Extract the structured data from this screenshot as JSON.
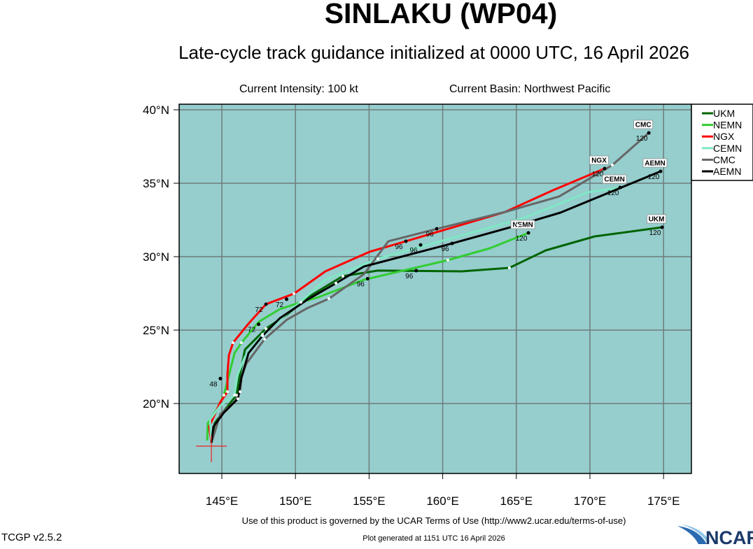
{
  "header": {
    "title": "SINLAKU (WP04)",
    "subtitle": "Late-cycle track guidance initialized at 0000 UTC, 16 April 2026",
    "intensity": "Current Intensity: 100 kt",
    "basin": "Current Basin: Northwest Pacific"
  },
  "footer": {
    "terms": "Use of this product is governed by the UCAR Terms of Use (http://www2.ucar.edu/terms-of-use)",
    "version": "TCGP v2.5.2",
    "generated": "Plot generated at 1151 UTC   16 April 2026",
    "logo_text": "NCAR"
  },
  "chart_data": {
    "type": "map-tracks",
    "ocean_color": "#96cdcd",
    "grid": true,
    "lon_range": [
      142.1,
      176.8
    ],
    "lat_range": [
      15.2,
      40.4
    ],
    "lon_ticks": [
      "145°E",
      "150°E",
      "155°E",
      "160°E",
      "165°E",
      "170°E",
      "175°E"
    ],
    "lon_tick_values": [
      145,
      150,
      155,
      160,
      165,
      170,
      175
    ],
    "lat_ticks": [
      "40°N",
      "35°N",
      "30°N",
      "25°N",
      "20°N"
    ],
    "lat_tick_values": [
      40,
      35,
      30,
      25,
      20
    ],
    "legend_position": "right-top",
    "current_position": [
      144.29,
      17.1
    ],
    "tracks": [
      {
        "name": "UKM",
        "color": "#006400",
        "points": [
          [
            144.29,
            17.33
          ],
          [
            144.52,
            18.67
          ],
          [
            145.24,
            19.62
          ],
          [
            146.0,
            20.57
          ],
          [
            146.19,
            21.76
          ],
          [
            146.57,
            23.67
          ],
          [
            147.99,
            25.1
          ],
          [
            149.42,
            26.05
          ],
          [
            150.85,
            27.24
          ],
          [
            153.22,
            28.67
          ],
          [
            155.6,
            29.05
          ],
          [
            161.3,
            29.0
          ],
          [
            164.53,
            29.24
          ],
          [
            167.0,
            30.43
          ],
          [
            170.33,
            31.38
          ],
          [
            174.9,
            32.0
          ]
        ],
        "labels": [
          {
            "text": "96",
            "lon": 158.2,
            "lat": 29.05
          },
          {
            "text": "120",
            "lon": 174.9,
            "lat": 32.0
          }
        ]
      },
      {
        "name": "NEMN",
        "color": "#32cd32",
        "points": [
          [
            144.0,
            17.48
          ],
          [
            144.05,
            18.67
          ],
          [
            144.67,
            19.62
          ],
          [
            145.14,
            20.57
          ],
          [
            145.38,
            21.52
          ],
          [
            145.86,
            23.43
          ],
          [
            146.33,
            24.14
          ],
          [
            147.52,
            25.57
          ],
          [
            148.94,
            26.43
          ],
          [
            150.37,
            26.9
          ],
          [
            151.56,
            27.24
          ],
          [
            154.65,
            28.43
          ],
          [
            160.35,
            29.76
          ],
          [
            163.2,
            30.57
          ],
          [
            165.82,
            31.62
          ]
        ],
        "labels": [
          {
            "text": "48",
            "lon": 144.9,
            "lat": 21.7
          },
          {
            "text": "72",
            "lon": 147.5,
            "lat": 25.4
          },
          {
            "text": "96",
            "lon": 154.9,
            "lat": 28.5
          },
          {
            "text": "120",
            "lon": 165.82,
            "lat": 31.62
          }
        ]
      },
      {
        "name": "NGX",
        "color": "#ff0000",
        "points": [
          [
            144.29,
            17.33
          ],
          [
            144.14,
            18.43
          ],
          [
            144.9,
            20.1
          ],
          [
            145.38,
            20.81
          ],
          [
            145.38,
            22.0
          ],
          [
            145.48,
            23.29
          ],
          [
            145.76,
            24.14
          ],
          [
            146.8,
            25.43
          ],
          [
            148.0,
            26.76
          ],
          [
            149.9,
            27.48
          ],
          [
            152.03,
            29.0
          ],
          [
            155.03,
            30.33
          ],
          [
            157.5,
            31.05
          ],
          [
            164.25,
            33.05
          ],
          [
            167.48,
            34.52
          ],
          [
            171.0,
            36.0
          ]
        ],
        "labels": [
          {
            "text": "72",
            "lon": 148.0,
            "lat": 26.76
          },
          {
            "text": "96",
            "lon": 157.5,
            "lat": 31.05
          },
          {
            "text": "120",
            "lon": 171.0,
            "lat": 36.0
          }
        ],
        "tag": {
          "text": "NGX"
        }
      },
      {
        "name": "CEMN",
        "color": "#7fe8c4",
        "points": [
          [
            144.29,
            17.33
          ],
          [
            144.19,
            18.9
          ],
          [
            144.9,
            19.86
          ],
          [
            145.86,
            20.57
          ],
          [
            146.0,
            21.76
          ],
          [
            146.57,
            23.19
          ],
          [
            147.76,
            24.71
          ],
          [
            149.9,
            26.52
          ],
          [
            152.03,
            28.43
          ],
          [
            155.6,
            29.86
          ],
          [
            165.48,
            32.62
          ],
          [
            169.86,
            34.38
          ],
          [
            172.05,
            34.71
          ]
        ],
        "labels": [
          {
            "text": "96",
            "lon": 158.5,
            "lat": 30.8
          },
          {
            "text": "120",
            "lon": 172.05,
            "lat": 34.71
          }
        ]
      },
      {
        "name": "CMC",
        "color": "#666666",
        "points": [
          [
            144.29,
            17.33
          ],
          [
            144.9,
            19.29
          ],
          [
            145.86,
            20.1
          ],
          [
            146.24,
            20.81
          ],
          [
            146.33,
            21.76
          ],
          [
            146.66,
            22.71
          ],
          [
            147.9,
            24.38
          ],
          [
            149.42,
            25.71
          ],
          [
            150.85,
            26.52
          ],
          [
            152.27,
            27.14
          ],
          [
            154.65,
            28.81
          ],
          [
            156.31,
            31.05
          ],
          [
            159.64,
            31.9
          ],
          [
            164.25,
            33.05
          ],
          [
            167.91,
            34.1
          ],
          [
            171.52,
            36.24
          ],
          [
            174.0,
            38.43
          ]
        ],
        "labels": [
          {
            "text": "96",
            "lon": 159.6,
            "lat": 31.9
          },
          {
            "text": "120",
            "lon": 174.0,
            "lat": 38.43
          }
        ]
      },
      {
        "name": "AEMN",
        "color": "#000000",
        "points": [
          [
            144.29,
            17.33
          ],
          [
            144.43,
            18.43
          ],
          [
            145.14,
            19.38
          ],
          [
            146.09,
            20.33
          ],
          [
            146.33,
            21.76
          ],
          [
            146.81,
            23.43
          ],
          [
            147.76,
            24.62
          ],
          [
            148.94,
            25.81
          ],
          [
            150.85,
            27.1
          ],
          [
            152.75,
            28.19
          ],
          [
            154.65,
            29.33
          ],
          [
            160.64,
            30.9
          ],
          [
            165.1,
            32.14
          ],
          [
            168.0,
            33.0
          ],
          [
            174.8,
            35.81
          ]
        ],
        "labels": [
          {
            "text": "72",
            "lon": 149.4,
            "lat": 27.1
          },
          {
            "text": "96",
            "lon": 160.64,
            "lat": 30.9
          },
          {
            "text": "120",
            "lon": 174.8,
            "lat": 35.81
          }
        ]
      }
    ]
  }
}
